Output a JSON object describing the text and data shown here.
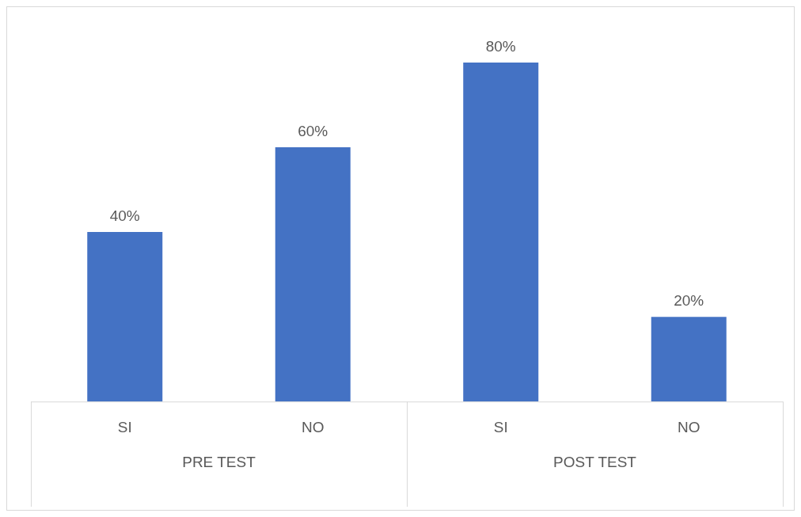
{
  "chart_data": {
    "type": "bar",
    "categories": [
      "SI",
      "NO",
      "SI",
      "NO"
    ],
    "values": [
      40,
      60,
      80,
      20
    ],
    "value_labels": [
      "40%",
      "60%",
      "80%",
      "20%"
    ],
    "color": "#4472c4",
    "annotations": [
      "PRE TEST",
      "POST TEST"
    ],
    "grid": false,
    "legend": false
  }
}
